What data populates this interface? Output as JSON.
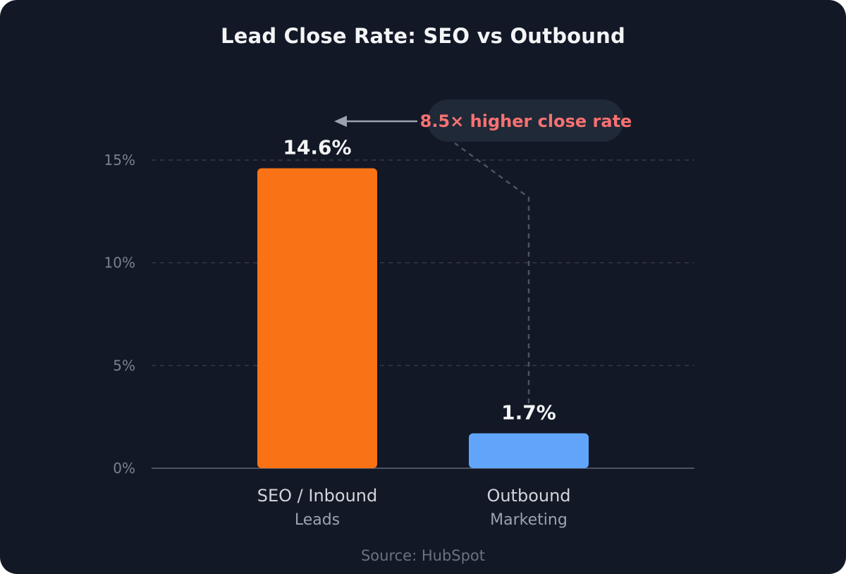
{
  "chart_data": {
    "type": "bar",
    "title": "Lead Close Rate: SEO vs Outbound",
    "categories": [
      {
        "line1": "SEO / Inbound",
        "line2": "Leads"
      },
      {
        "line1": "Outbound",
        "line2": "Marketing"
      }
    ],
    "values": [
      14.6,
      1.7
    ],
    "value_labels": [
      "14.6%",
      "1.7%"
    ],
    "colors": [
      "#f97316",
      "#60a5fa"
    ],
    "ylim": [
      0,
      15
    ],
    "yticks": [
      {
        "value": 0,
        "label": "0%"
      },
      {
        "value": 5,
        "label": "5%"
      },
      {
        "value": 10,
        "label": "10%"
      },
      {
        "value": 15,
        "label": "15%"
      }
    ],
    "grid": true,
    "annotation": {
      "text": "8.5× higher close rate",
      "color": "#f87171"
    },
    "source": "Source: HubSpot"
  }
}
